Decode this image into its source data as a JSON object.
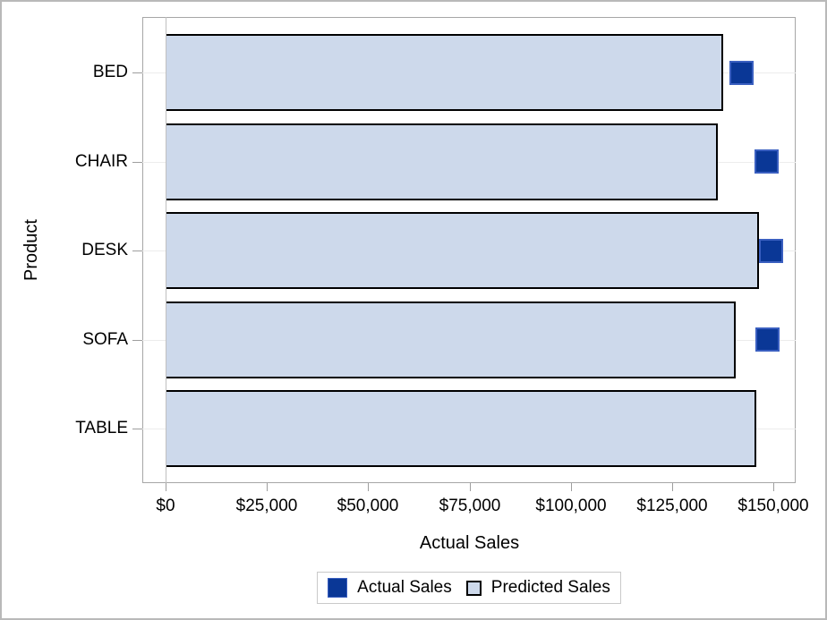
{
  "chart_data": {
    "type": "bar",
    "orientation": "horizontal",
    "title": "",
    "categories": [
      "BED",
      "CHAIR",
      "DESK",
      "SOFA",
      "TABLE"
    ],
    "series": [
      {
        "name": "Actual Sales",
        "plot": "scatter",
        "marker": "square",
        "values": [
          142100,
          148400,
          149400,
          148600,
          null
        ]
      },
      {
        "name": "Predicted Sales",
        "plot": "bar",
        "values": [
          137600,
          136300,
          146400,
          140700,
          145800
        ]
      }
    ],
    "xlabel": "Actual Sales",
    "ylabel": "Product",
    "xlim": [
      0,
      150000
    ],
    "x_ticks": [
      {
        "value": 0,
        "label": "$0"
      },
      {
        "value": 25000,
        "label": "$25,000"
      },
      {
        "value": 50000,
        "label": "$50,000"
      },
      {
        "value": 75000,
        "label": "$75,000"
      },
      {
        "value": 100000,
        "label": "$100,000"
      },
      {
        "value": 125000,
        "label": "$125,000"
      },
      {
        "value": 150000,
        "label": "$150,000"
      }
    ],
    "grid": "horizontal category gridlines only",
    "legend_position": "bottom-center"
  },
  "legend": {
    "items": [
      {
        "label": "Actual Sales",
        "swatch": "filled-square-dark-blue"
      },
      {
        "label": "Predicted Sales",
        "swatch": "outlined-square-light-blue"
      }
    ]
  },
  "colors": {
    "bar_fill": "#cdd9eb",
    "bar_border": "#000000",
    "marker_fill": "#0a3796",
    "marker_border": "#3a5fc0",
    "gridline": "#ececec",
    "axis_tick": "#9e9e9e",
    "wall_border": "#a6a6a6",
    "baseline": "#c0c0c0",
    "frame_border": "#b9b9b9",
    "legend_border": "#c9c9c9",
    "text": "#000000",
    "background": "#ffffff"
  }
}
